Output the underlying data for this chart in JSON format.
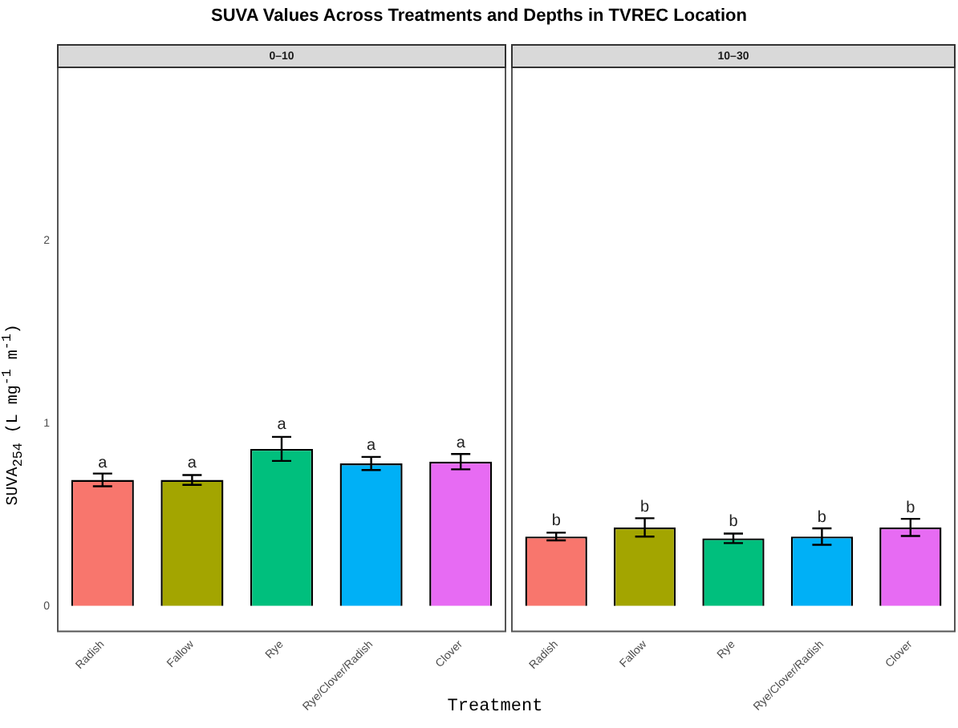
{
  "chart_data": [
    {
      "type": "bar",
      "title": "0–10",
      "xlabel": "Treatment",
      "ylabel": "SUVA$_{254}$ (L mg$^{-1}$ m$^{-1}$)",
      "annotations": [
        "SUVA Values Across Treatments and Depths in TVREC Location",
        {
          "text": "a",
          "x": "Radish",
          "y": 0.72
        },
        {
          "text": "a",
          "x": "Fallow",
          "y": 0.72
        },
        {
          "text": "a",
          "x": "Rye",
          "y": 0.93
        },
        {
          "text": "a",
          "x": "Rye/Clover/Radish",
          "y": 0.82
        },
        {
          "text": "a",
          "x": "Clover",
          "y": 0.83
        }
      ],
      "categories": [
        "Radish",
        "Fallow",
        "Rye",
        "Rye/Clover/Radish",
        "Clover"
      ],
      "values": [
        0.69,
        0.69,
        0.86,
        0.78,
        0.79
      ],
      "errors": [
        0.035,
        0.027,
        0.066,
        0.036,
        0.042
      ],
      "colors": [
        "#f8766d",
        "#a3a500",
        "#00bf7d",
        "#00b0f6",
        "#e76bf3"
      ],
      "ylim": [
        -0.14,
        2.95
      ],
      "yticks": [
        0,
        1,
        2
      ],
      "grid": false,
      "legend": false
    },
    {
      "type": "bar",
      "title": "10–30",
      "annotations": [
        {
          "text": "b",
          "x": "Radish",
          "y": 0.403
        },
        {
          "text": "b",
          "x": "Fallow",
          "y": 0.48
        },
        {
          "text": "b",
          "x": "Rye",
          "y": 0.399
        },
        {
          "text": "b",
          "x": "Rye/Clover/Radish",
          "y": 0.421
        },
        {
          "text": "b",
          "x": "Clover",
          "y": 0.474
        }
      ],
      "categories": [
        "Radish",
        "Fallow",
        "Rye",
        "Rye/Clover/Radish",
        "Clover"
      ],
      "values": [
        0.38,
        0.43,
        0.37,
        0.38,
        0.43
      ],
      "errors": [
        0.021,
        0.05,
        0.026,
        0.045,
        0.047
      ],
      "colors": [
        "#f8766d",
        "#a3a500",
        "#00bf7d",
        "#00b0f6",
        "#e76bf3"
      ],
      "ylim": [
        -0.14,
        2.95
      ],
      "yticks": [
        0,
        1,
        2
      ],
      "grid": false,
      "legend": false,
      "tick_labels": "x"
    }
  ]
}
